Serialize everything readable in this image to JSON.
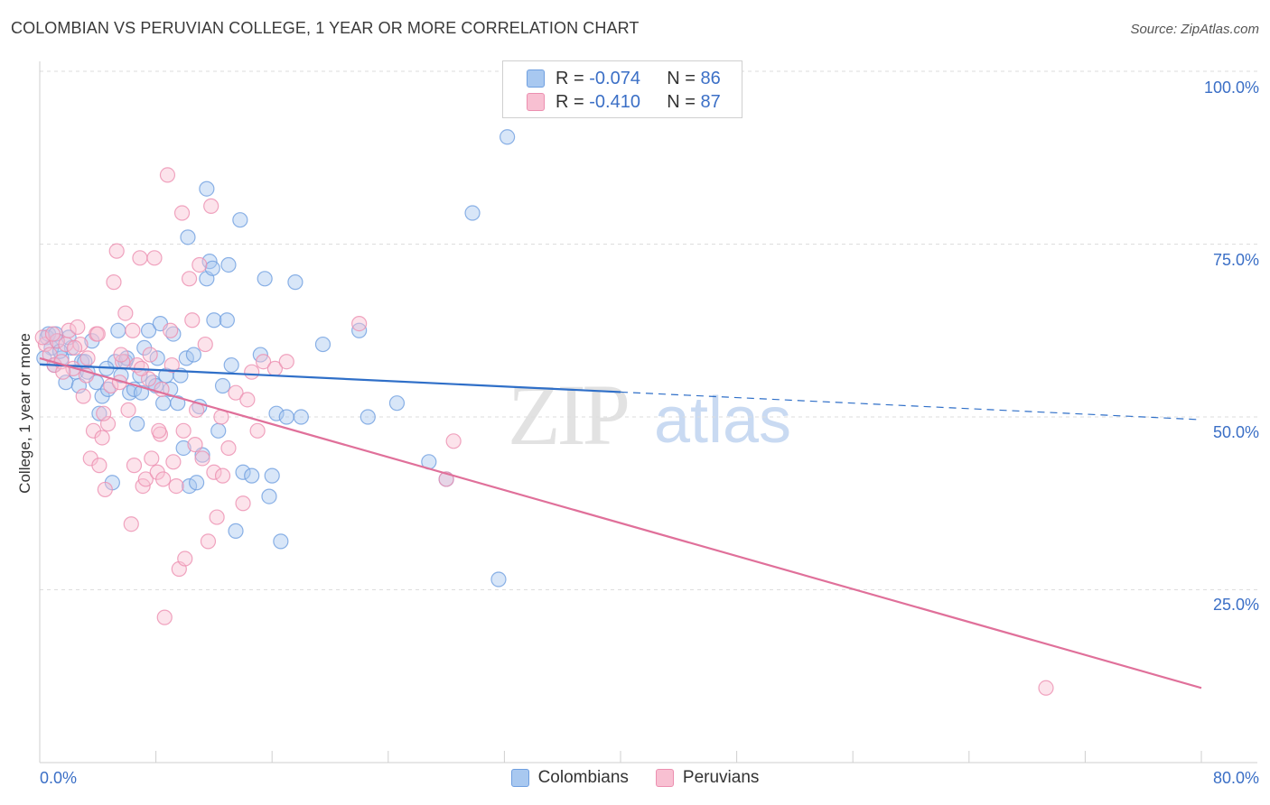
{
  "header": {
    "title": "COLOMBIAN VS PERUVIAN COLLEGE, 1 YEAR OR MORE CORRELATION CHART",
    "source": "Source: ZipAtlas.com"
  },
  "legend": {
    "r_label": "R = ",
    "n_label": "N = ",
    "rows": [
      {
        "r": "-0.074",
        "n": "86",
        "fill": "#a8c8f0",
        "stroke": "#6f9fe0"
      },
      {
        "r": "-0.410",
        "n": "87",
        "fill": "#f8c0d2",
        "stroke": "#ec8fb0"
      }
    ]
  },
  "watermark": {
    "zip": "ZIP",
    "atlas": "atlas"
  },
  "chart_data": {
    "type": "scatter",
    "title": "COLOMBIAN VS PERUVIAN COLLEGE, 1 YEAR OR MORE CORRELATION CHART",
    "xlabel": "",
    "ylabel": "College, 1 year or more",
    "xlim": [
      0,
      80
    ],
    "ylim": [
      0,
      100
    ],
    "x_tick_labels": [
      "0.0%",
      "80.0%"
    ],
    "y_tick_labels": [
      "100.0%",
      "75.0%",
      "50.0%",
      "25.0%"
    ],
    "y_tick_values": [
      100,
      75,
      50,
      25
    ],
    "grid": true,
    "series": [
      {
        "name": "Colombians",
        "color": "#6f9fe0",
        "fill": "#a8c8f0",
        "trend_color": "#2f6fc8",
        "trend": {
          "x0": 0,
          "y0": 57.6,
          "x1": 40,
          "y1": 53.6,
          "dash_to_x": 80,
          "dash_to_y": 49.6
        },
        "points": [
          [
            0.5,
            61.5
          ],
          [
            0.8,
            60
          ],
          [
            1.2,
            61
          ],
          [
            1.0,
            57.5
          ],
          [
            1.5,
            58.5
          ],
          [
            1.8,
            55
          ],
          [
            2.2,
            60
          ],
          [
            2.5,
            56.5
          ],
          [
            2.9,
            58
          ],
          [
            3.3,
            56.5
          ],
          [
            3.6,
            61
          ],
          [
            3.9,
            55
          ],
          [
            4.1,
            50.5
          ],
          [
            4.3,
            53
          ],
          [
            4.7,
            54
          ],
          [
            5.0,
            40.5
          ],
          [
            5.2,
            58
          ],
          [
            5.4,
            62.5
          ],
          [
            5.6,
            56
          ],
          [
            5.9,
            58
          ],
          [
            6.2,
            53.5
          ],
          [
            6.5,
            54
          ],
          [
            6.7,
            49
          ],
          [
            7.0,
            53.5
          ],
          [
            7.2,
            60
          ],
          [
            7.5,
            62.5
          ],
          [
            7.8,
            55
          ],
          [
            8.1,
            58.5
          ],
          [
            8.3,
            63.5
          ],
          [
            8.5,
            52
          ],
          [
            8.7,
            56
          ],
          [
            9.0,
            54
          ],
          [
            9.2,
            62
          ],
          [
            9.5,
            52
          ],
          [
            9.9,
            45.5
          ],
          [
            10.1,
            58.5
          ],
          [
            10.3,
            40
          ],
          [
            10.6,
            59
          ],
          [
            10.8,
            40.5
          ],
          [
            11.0,
            51.5
          ],
          [
            11.2,
            44.5
          ],
          [
            11.5,
            70
          ],
          [
            11.7,
            72.5
          ],
          [
            12.0,
            64
          ],
          [
            12.3,
            48
          ],
          [
            12.6,
            54.5
          ],
          [
            12.9,
            64
          ],
          [
            13.2,
            57.5
          ],
          [
            13.5,
            33.5
          ],
          [
            13.8,
            78.5
          ],
          [
            14.0,
            42
          ],
          [
            14.6,
            41.5
          ],
          [
            15.2,
            59
          ],
          [
            15.5,
            70
          ],
          [
            15.8,
            38.5
          ],
          [
            16.0,
            41.5
          ],
          [
            16.3,
            50.5
          ],
          [
            16.6,
            32
          ],
          [
            17.0,
            50
          ],
          [
            17.6,
            69.5
          ],
          [
            18.0,
            50
          ],
          [
            19.5,
            60.5
          ],
          [
            22.0,
            62.5
          ],
          [
            22.6,
            50
          ],
          [
            24.6,
            52
          ],
          [
            26.8,
            43.5
          ],
          [
            28.0,
            41
          ],
          [
            29.8,
            79.5
          ],
          [
            31.6,
            26.5
          ],
          [
            32.2,
            90.5
          ],
          [
            11.5,
            83
          ],
          [
            10.2,
            76
          ],
          [
            11.9,
            71.5
          ],
          [
            0.3,
            58.5
          ],
          [
            0.6,
            62
          ],
          [
            1.4,
            59.5
          ],
          [
            2.0,
            61.5
          ],
          [
            2.7,
            54.5
          ],
          [
            3.1,
            58
          ],
          [
            4.6,
            57
          ],
          [
            6.0,
            58.5
          ],
          [
            6.9,
            56
          ],
          [
            8.0,
            54.5
          ],
          [
            9.7,
            56
          ],
          [
            13.0,
            72
          ],
          [
            1.1,
            62
          ]
        ]
      },
      {
        "name": "Peruvians",
        "color": "#ec8fb0",
        "fill": "#f8c0d2",
        "trend_color": "#e0709a",
        "trend": {
          "x0": 0,
          "y0": 58.5,
          "x1": 80,
          "y1": 10.8
        },
        "points": [
          [
            0.4,
            60.5
          ],
          [
            0.7,
            59
          ],
          [
            1.0,
            57.5
          ],
          [
            1.2,
            61
          ],
          [
            1.5,
            58
          ],
          [
            1.8,
            60.5
          ],
          [
            2.0,
            62.5
          ],
          [
            2.3,
            57
          ],
          [
            2.6,
            63
          ],
          [
            2.8,
            60.5
          ],
          [
            3.0,
            53
          ],
          [
            3.3,
            58.5
          ],
          [
            3.5,
            44
          ],
          [
            3.7,
            48
          ],
          [
            3.9,
            62
          ],
          [
            4.1,
            43
          ],
          [
            4.3,
            47
          ],
          [
            4.5,
            39.5
          ],
          [
            4.7,
            49
          ],
          [
            4.9,
            54.5
          ],
          [
            5.1,
            69.5
          ],
          [
            5.3,
            74
          ],
          [
            5.5,
            55
          ],
          [
            5.7,
            58
          ],
          [
            5.9,
            65
          ],
          [
            6.1,
            51
          ],
          [
            6.3,
            34.5
          ],
          [
            6.5,
            43
          ],
          [
            6.7,
            57.5
          ],
          [
            6.9,
            73
          ],
          [
            7.1,
            40
          ],
          [
            7.3,
            41
          ],
          [
            7.5,
            55.5
          ],
          [
            7.7,
            44
          ],
          [
            7.9,
            73
          ],
          [
            8.1,
            42
          ],
          [
            8.3,
            47.5
          ],
          [
            8.5,
            41
          ],
          [
            8.6,
            21
          ],
          [
            8.8,
            85
          ],
          [
            9.0,
            62.5
          ],
          [
            9.2,
            43.5
          ],
          [
            9.4,
            40
          ],
          [
            9.6,
            28
          ],
          [
            9.8,
            79.5
          ],
          [
            10.0,
            29.5
          ],
          [
            10.3,
            70
          ],
          [
            10.5,
            64
          ],
          [
            10.8,
            51
          ],
          [
            11.0,
            72
          ],
          [
            11.2,
            44
          ],
          [
            11.4,
            60.5
          ],
          [
            11.6,
            32
          ],
          [
            11.8,
            80.5
          ],
          [
            12.0,
            42
          ],
          [
            12.2,
            35.5
          ],
          [
            12.5,
            50
          ],
          [
            13.0,
            45.5
          ],
          [
            13.5,
            53.5
          ],
          [
            14.0,
            37.5
          ],
          [
            14.3,
            52.5
          ],
          [
            14.6,
            56.5
          ],
          [
            15.0,
            48
          ],
          [
            15.4,
            58
          ],
          [
            16.2,
            57
          ],
          [
            17.0,
            58
          ],
          [
            22.0,
            63.5
          ],
          [
            28.0,
            41
          ],
          [
            28.5,
            46.5
          ],
          [
            69.3,
            10.8
          ],
          [
            0.2,
            61.5
          ],
          [
            0.9,
            62
          ],
          [
            1.6,
            56.5
          ],
          [
            2.4,
            60
          ],
          [
            3.2,
            56
          ],
          [
            4.0,
            62
          ],
          [
            4.4,
            50.5
          ],
          [
            5.6,
            59
          ],
          [
            6.4,
            62.5
          ],
          [
            7.0,
            57
          ],
          [
            7.6,
            59
          ],
          [
            8.4,
            54
          ],
          [
            9.1,
            57.5
          ],
          [
            9.9,
            48
          ],
          [
            10.7,
            46
          ],
          [
            12.6,
            41.5
          ],
          [
            8.2,
            48
          ]
        ]
      }
    ]
  },
  "bottom_legend": [
    {
      "label": "Colombians",
      "fill": "#a8c8f0",
      "stroke": "#6f9fe0"
    },
    {
      "label": "Peruvians",
      "fill": "#f8c0d2",
      "stroke": "#ec8fb0"
    }
  ]
}
